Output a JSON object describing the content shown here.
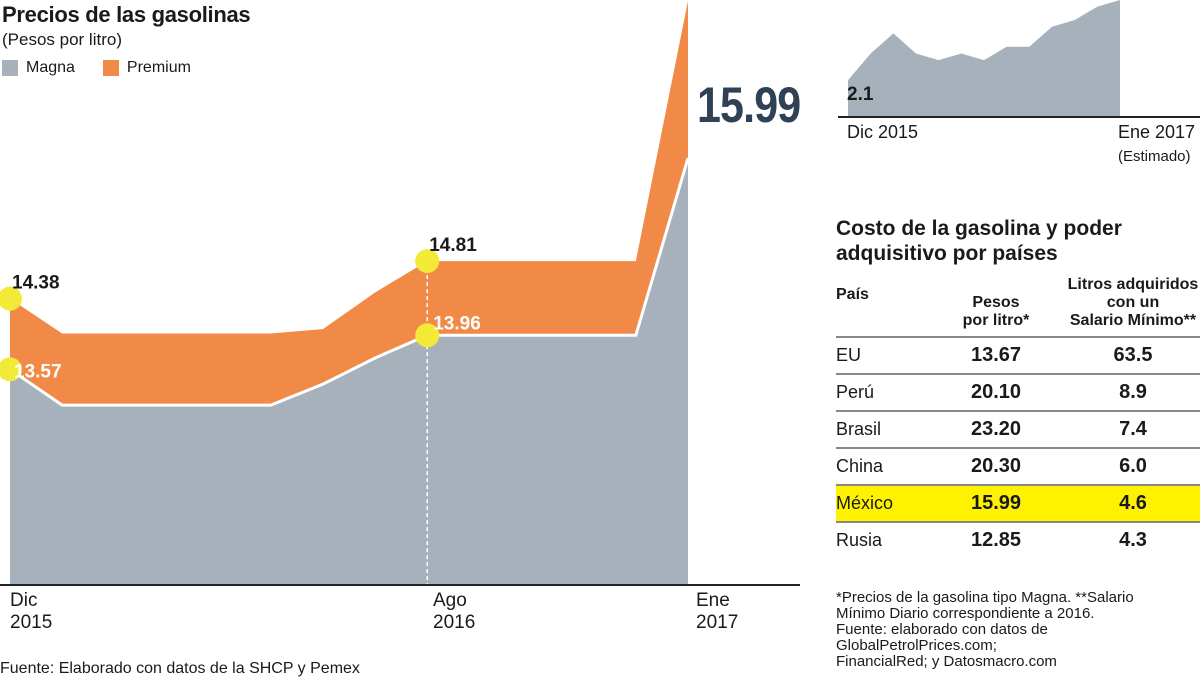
{
  "chart_data": [
    {
      "type": "area",
      "title": "Precios de las gasolinas",
      "subtitle": "(Pesos por litro)",
      "unit": "Pesos por litro",
      "legend": {
        "placement": "top-left"
      },
      "series": [
        {
          "name": "Magna",
          "color": "#a7b1bc",
          "points": [
            {
              "x": "2015-12",
              "y": 13.57
            },
            {
              "x": "2016-01",
              "y": 13.16
            },
            {
              "x": "2016-02",
              "y": 13.16
            },
            {
              "x": "2016-03",
              "y": 13.16
            },
            {
              "x": "2016-04",
              "y": 13.16
            },
            {
              "x": "2016-05",
              "y": 13.16
            },
            {
              "x": "2016-06",
              "y": 13.4
            },
            {
              "x": "2016-07",
              "y": 13.7
            },
            {
              "x": "2016-08",
              "y": 13.96
            },
            {
              "x": "2016-09",
              "y": 13.96
            },
            {
              "x": "2016-10",
              "y": 13.96
            },
            {
              "x": "2016-11",
              "y": 13.96
            },
            {
              "x": "2016-12",
              "y": 13.96
            },
            {
              "x": "2017-01",
              "y": 15.99
            }
          ]
        },
        {
          "name": "Premium",
          "color": "#f08a46",
          "points": [
            {
              "x": "2015-12",
              "y": 14.38
            },
            {
              "x": "2016-01",
              "y": 13.98
            },
            {
              "x": "2016-02",
              "y": 13.98
            },
            {
              "x": "2016-03",
              "y": 13.98
            },
            {
              "x": "2016-04",
              "y": 13.98
            },
            {
              "x": "2016-05",
              "y": 13.98
            },
            {
              "x": "2016-06",
              "y": 14.03
            },
            {
              "x": "2016-07",
              "y": 14.45
            },
            {
              "x": "2016-08",
              "y": 14.81
            },
            {
              "x": "2016-09",
              "y": 14.81
            },
            {
              "x": "2016-10",
              "y": 14.81
            },
            {
              "x": "2016-11",
              "y": 14.81
            },
            {
              "x": "2016-12",
              "y": 14.81
            },
            {
              "x": "2017-01",
              "y": 17.79
            }
          ]
        }
      ],
      "annotations": [
        {
          "x": "2015-12",
          "y": 14.38,
          "text": "14.38"
        },
        {
          "x": "2015-12",
          "y": 13.57,
          "text": "13.57"
        },
        {
          "x": "2016-08",
          "y": 14.81,
          "text": "14.81"
        },
        {
          "x": "2016-08",
          "y": 13.96,
          "text": "13.96"
        }
      ],
      "highlight_value": "15.99",
      "x_tick_labels": [
        {
          "x": "2015-12",
          "text": "Dic\n2015"
        },
        {
          "x": "2016-08",
          "text": "Ago\n2016"
        },
        {
          "x": "2017-01",
          "text": "Ene\n2017"
        }
      ]
    },
    {
      "type": "area",
      "color": "#a7b1bc",
      "start_label": "2.1",
      "values": [
        2.1,
        2.5,
        2.8,
        2.5,
        2.4,
        2.5,
        2.4,
        2.6,
        2.6,
        2.9,
        3.0,
        3.2,
        3.3
      ],
      "x_tick_labels": [
        "Dic 2015",
        "Ene 2017"
      ],
      "x_note": "(Estimado)"
    }
  ],
  "main": {
    "title": "Precios de las gasolinas",
    "subtitle": "(Pesos por litro)",
    "legend": [
      {
        "label": "Magna"
      },
      {
        "label": "Premium"
      }
    ],
    "big_value": "15.99",
    "xlabels": [
      "Dic\n2015",
      "Ago\n2016",
      "Ene\n2017"
    ],
    "source": "Fuente: Elaborado con datos de la SHCP y Pemex"
  },
  "mini": {
    "start_value_label": "2.1",
    "x_start": "Dic 2015",
    "x_end": "Ene 2017",
    "x_end_note": "(Estimado)"
  },
  "table": {
    "title": "Costo de la gasolina y poder adquisitivo por países",
    "headers": [
      "País",
      "Pesos\npor litro*",
      "Litros adquiridos\ncon un\nSalario Mínimo**"
    ],
    "rows": [
      {
        "country": "EU",
        "price": "13.67",
        "liters": "63.5"
      },
      {
        "country": "Perú",
        "price": "20.10",
        "liters": "8.9"
      },
      {
        "country": "Brasil",
        "price": "23.20",
        "liters": "7.4"
      },
      {
        "country": "China",
        "price": "20.30",
        "liters": "6.0"
      },
      {
        "country": "México",
        "price": "15.99",
        "liters": "4.6"
      },
      {
        "country": "Rusia",
        "price": "12.85",
        "liters": "4.3"
      }
    ],
    "highlight_row": "México"
  },
  "notes": {
    "line1": "*Precios de la gasolina tipo Magna. **Salario",
    "line2": "Mínimo Diario correspondiente a 2016.",
    "line3": "Fuente: elaborado con datos de",
    "line4": "GlobalPetrolPrices.com;",
    "line5": "FinancialRed; y Datosmacro.com"
  },
  "colors": {
    "magna": "#a7b1bc",
    "premium": "#f08a46",
    "highlight": "#fff200",
    "marker": "#f2ea36",
    "big_value": "#2f4154"
  },
  "icons": [
    "marker-dot"
  ]
}
